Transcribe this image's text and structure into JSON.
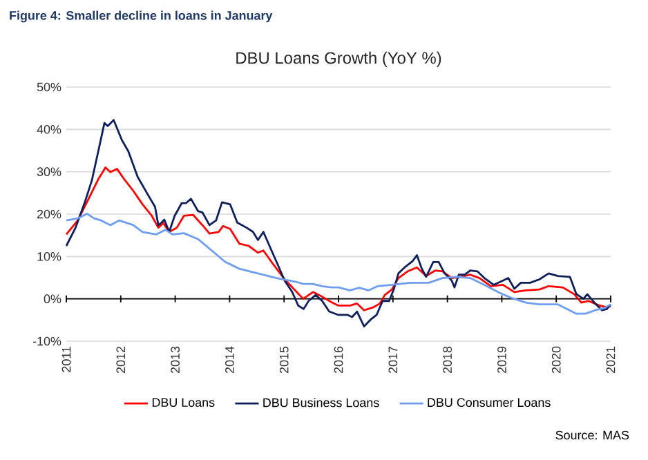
{
  "chart_data": {
    "type": "line",
    "title": "Figure 4: Smaller decline in loans in January",
    "subtitle": "DBU Loans Growth (YoY %)",
    "xlim": [
      2011,
      2021
    ],
    "xticks": [
      2011,
      2012,
      2013,
      2014,
      2015,
      2016,
      2017,
      2018,
      2019,
      2020,
      2021
    ],
    "ylim": [
      -10,
      50
    ],
    "yticks": [
      {
        "value": -10,
        "label": "-10%"
      },
      {
        "value": 0,
        "label": "0%"
      },
      {
        "value": 10,
        "label": "10%"
      },
      {
        "value": 20,
        "label": "20%"
      },
      {
        "value": 30,
        "label": "30%"
      },
      {
        "value": 40,
        "label": "40%"
      },
      {
        "value": 50,
        "label": "50%"
      }
    ],
    "grid": "y",
    "legend": "bottom",
    "marker": "none",
    "series": [
      {
        "name": "DBU Loans",
        "color": "#ff0000",
        "x": [
          2011,
          2011.21,
          2011.42,
          2011.59,
          2011.72,
          2011.81,
          2011.93,
          2012.06,
          2012.23,
          2012.4,
          2012.57,
          2012.69,
          2012.78,
          2012.89,
          2013.03,
          2013.16,
          2013.33,
          2013.5,
          2013.63,
          2013.8,
          2013.88,
          2014.01,
          2014.18,
          2014.35,
          2014.52,
          2014.62,
          2014.77,
          2015.01,
          2015.19,
          2015.35,
          2015.53,
          2015.7,
          2015.87,
          2016,
          2016.21,
          2016.34,
          2016.47,
          2016.64,
          2016.76,
          2016.85,
          2016.98,
          2017.1,
          2017.27,
          2017.44,
          2017.61,
          2017.78,
          2017.91,
          2018.08,
          2018.25,
          2018.42,
          2018.59,
          2018.8,
          2019.02,
          2019.23,
          2019.44,
          2019.69,
          2019.86,
          2020.12,
          2020.33,
          2020.46,
          2020.59,
          2020.8,
          2020.93,
          2021
        ],
        "values": [
          15.2,
          18.5,
          23.9,
          28.3,
          31,
          29.9,
          30.7,
          28.3,
          25.5,
          22.3,
          19.6,
          16.8,
          17.9,
          15.8,
          16.8,
          19.6,
          19.8,
          17.4,
          15.4,
          15.8,
          17.2,
          16.5,
          13,
          12.5,
          10.9,
          11.4,
          8.7,
          4.6,
          2.2,
          0,
          1.6,
          0.5,
          -0.8,
          -1.6,
          -1.6,
          -1.1,
          -2.7,
          -2,
          -1.1,
          0.9,
          2.2,
          4.9,
          6.5,
          7.4,
          5.4,
          6.7,
          6.5,
          4.9,
          5.2,
          5.7,
          4.9,
          3,
          3.3,
          1.6,
          2,
          2.2,
          3,
          2.7,
          1.1,
          -0.9,
          -0.5,
          -1.6,
          -2,
          -1.7
        ]
      },
      {
        "name": "DBU Business Loans",
        "color": "#0f1f5a",
        "x": [
          2011,
          2011.17,
          2011.34,
          2011.47,
          2011.59,
          2011.7,
          2011.76,
          2011.87,
          2012.02,
          2012.14,
          2012.31,
          2012.48,
          2012.63,
          2012.69,
          2012.75,
          2012.8,
          2012.89,
          2012.99,
          2013.12,
          2013.2,
          2013.29,
          2013.42,
          2013.5,
          2013.63,
          2013.75,
          2013.86,
          2014.01,
          2014.14,
          2014.31,
          2014.43,
          2014.52,
          2014.62,
          2014.77,
          2014.9,
          2015.01,
          2015.15,
          2015.26,
          2015.36,
          2015.45,
          2015.58,
          2015.7,
          2015.83,
          2016,
          2016.17,
          2016.25,
          2016.34,
          2016.47,
          2016.59,
          2016.7,
          2016.81,
          2016.93,
          2017.02,
          2017.1,
          2017.23,
          2017.36,
          2017.44,
          2017.53,
          2017.61,
          2017.74,
          2017.84,
          2017.95,
          2018.08,
          2018.13,
          2018.21,
          2018.32,
          2018.42,
          2018.55,
          2018.68,
          2018.85,
          2019.02,
          2019.12,
          2019.23,
          2019.35,
          2019.52,
          2019.69,
          2019.86,
          2020.03,
          2020.25,
          2020.37,
          2020.5,
          2020.57,
          2020.7,
          2020.84,
          2020.93,
          2021
        ],
        "values": [
          12.5,
          16.8,
          22.8,
          28,
          35,
          41.5,
          40.8,
          42.2,
          37.5,
          34.8,
          28.8,
          25,
          21.7,
          17.4,
          18,
          18.7,
          15.8,
          19.6,
          22.6,
          22.6,
          23.6,
          20.7,
          20.4,
          17.4,
          18.5,
          22.8,
          22.3,
          18,
          16.8,
          15.8,
          13.9,
          15.8,
          11.4,
          7.6,
          4.3,
          1.6,
          -1.6,
          -2.4,
          -0.5,
          0.9,
          -0.5,
          -3,
          -3.8,
          -3.8,
          -4.3,
          -3,
          -6.5,
          -4.9,
          -3.8,
          -0.5,
          -0.5,
          2.4,
          6,
          7.6,
          8.9,
          10.3,
          7.1,
          5.2,
          8.7,
          8.7,
          6,
          4.3,
          2.7,
          5.7,
          5.7,
          6.7,
          6.5,
          4.9,
          3.3,
          4.3,
          4.9,
          2.4,
          3.8,
          3.8,
          4.6,
          6,
          5.4,
          5.2,
          1.1,
          0,
          1.1,
          -0.9,
          -2.7,
          -2.4,
          -1.3
        ]
      },
      {
        "name": "DBU Consumer Loans",
        "color": "#6f9ef0",
        "x": [
          2011,
          2011.21,
          2011.38,
          2011.51,
          2011.64,
          2011.81,
          2011.97,
          2012.23,
          2012.4,
          2012.65,
          2012.82,
          2012.95,
          2013.16,
          2013.42,
          2013.67,
          2013.92,
          2014.18,
          2014.52,
          2014.86,
          2015.19,
          2015.36,
          2015.53,
          2015.7,
          2015.87,
          2016,
          2016.21,
          2016.38,
          2016.55,
          2016.72,
          2016.98,
          2017.32,
          2017.66,
          2017.91,
          2018.17,
          2018.42,
          2018.68,
          2018.93,
          2019.18,
          2019.44,
          2019.69,
          2020.03,
          2020.2,
          2020.37,
          2020.54,
          2020.71,
          2020.88,
          2021
        ],
        "values": [
          18.5,
          19,
          20.1,
          19,
          18.5,
          17.4,
          18.5,
          17.4,
          15.8,
          15.2,
          16.3,
          15.2,
          15.5,
          14.1,
          11.4,
          8.7,
          7.1,
          6,
          4.9,
          4.1,
          3.5,
          3.5,
          3,
          2.7,
          2.7,
          2,
          2.6,
          2,
          3,
          3.3,
          3.8,
          3.8,
          4.9,
          5.2,
          4.9,
          3.3,
          1.6,
          0.2,
          -0.9,
          -1.3,
          -1.3,
          -2.4,
          -3.5,
          -3.5,
          -2.7,
          -2.2,
          -1.3
        ]
      }
    ],
    "annotations": [
      "Source: MAS"
    ]
  }
}
